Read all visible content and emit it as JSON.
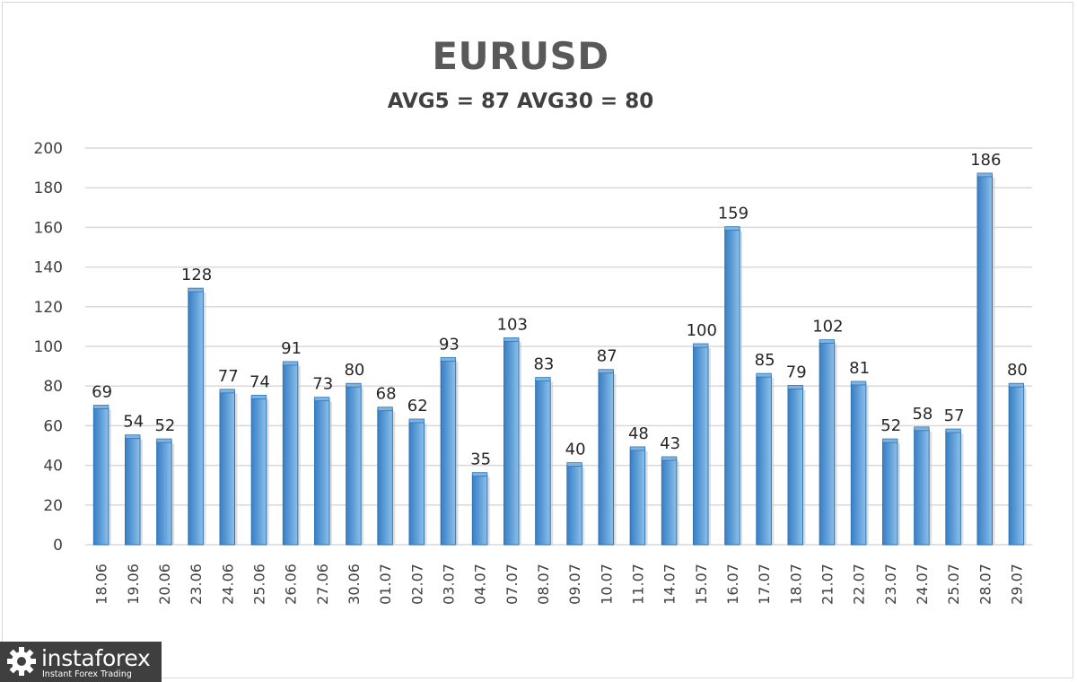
{
  "chart_data": {
    "type": "bar",
    "title": "EURUSD",
    "subtitle": "AVG5 = 87 AVG30 = 80",
    "categories": [
      "18.06",
      "19.06",
      "20.06",
      "23.06",
      "24.06",
      "25.06",
      "26.06",
      "27.06",
      "30.06",
      "01.07",
      "02.07",
      "03.07",
      "04.07",
      "07.07",
      "08.07",
      "09.07",
      "10.07",
      "11.07",
      "14.07",
      "15.07",
      "16.07",
      "17.07",
      "18.07",
      "21.07",
      "22.07",
      "23.07",
      "24.07",
      "25.07",
      "28.07",
      "29.07"
    ],
    "values": [
      69,
      54,
      52,
      128,
      77,
      74,
      91,
      73,
      80,
      68,
      62,
      93,
      35,
      103,
      83,
      40,
      87,
      48,
      43,
      100,
      159,
      85,
      79,
      102,
      81,
      52,
      58,
      57,
      186,
      80
    ],
    "ylim": [
      0,
      200
    ],
    "yticks": [
      0,
      20,
      40,
      60,
      80,
      100,
      120,
      140,
      160,
      180,
      200
    ],
    "grid": true,
    "data_labels": true,
    "colors": {
      "bar": "#5b9bd5",
      "bar_dark": "#2e75b6",
      "grid": "#d9d9d9",
      "text": "#404040"
    }
  },
  "logo": {
    "name": "instaforex",
    "tagline": "Instant Forex Trading"
  }
}
